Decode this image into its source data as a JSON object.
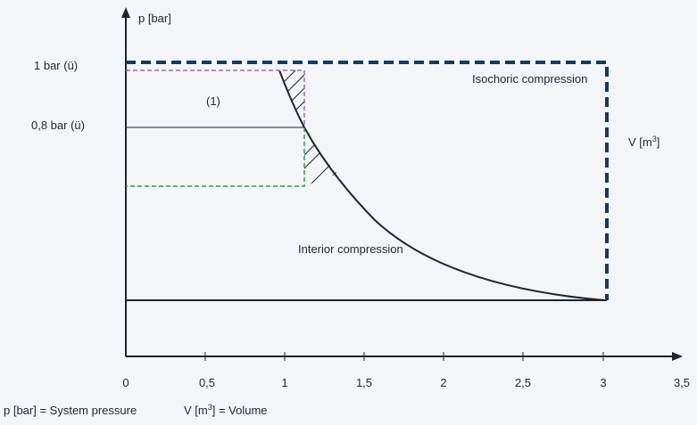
{
  "axes": {
    "y_label": "p [bar]",
    "x_label": "V [m",
    "x_label_sup": "3",
    "x_label_end": "]",
    "y_ticks": [
      {
        "label": "1 bar (ü)",
        "value": 1.0
      },
      {
        "label": "0,8 bar (ü)",
        "value": 0.8
      }
    ],
    "x_ticks": [
      "0",
      "0,5",
      "1",
      "1,5",
      "2",
      "2,5",
      "3",
      "3,5"
    ]
  },
  "annotations": {
    "region_marker": "(1)",
    "isochoric": "Isochoric compression",
    "interior": "Interior compression"
  },
  "legend": {
    "pressure": "p [bar] = System pressure",
    "volume_prefix": "V [m",
    "volume_sup": "3",
    "volume_suffix": "] = Volume"
  },
  "colors": {
    "axis": "#1e2530",
    "isochoric_dashed": "#163a5c",
    "purple_dashed": "#9b6fb0",
    "green_dashed": "#2aa040",
    "background": "#f3f5f9"
  }
}
